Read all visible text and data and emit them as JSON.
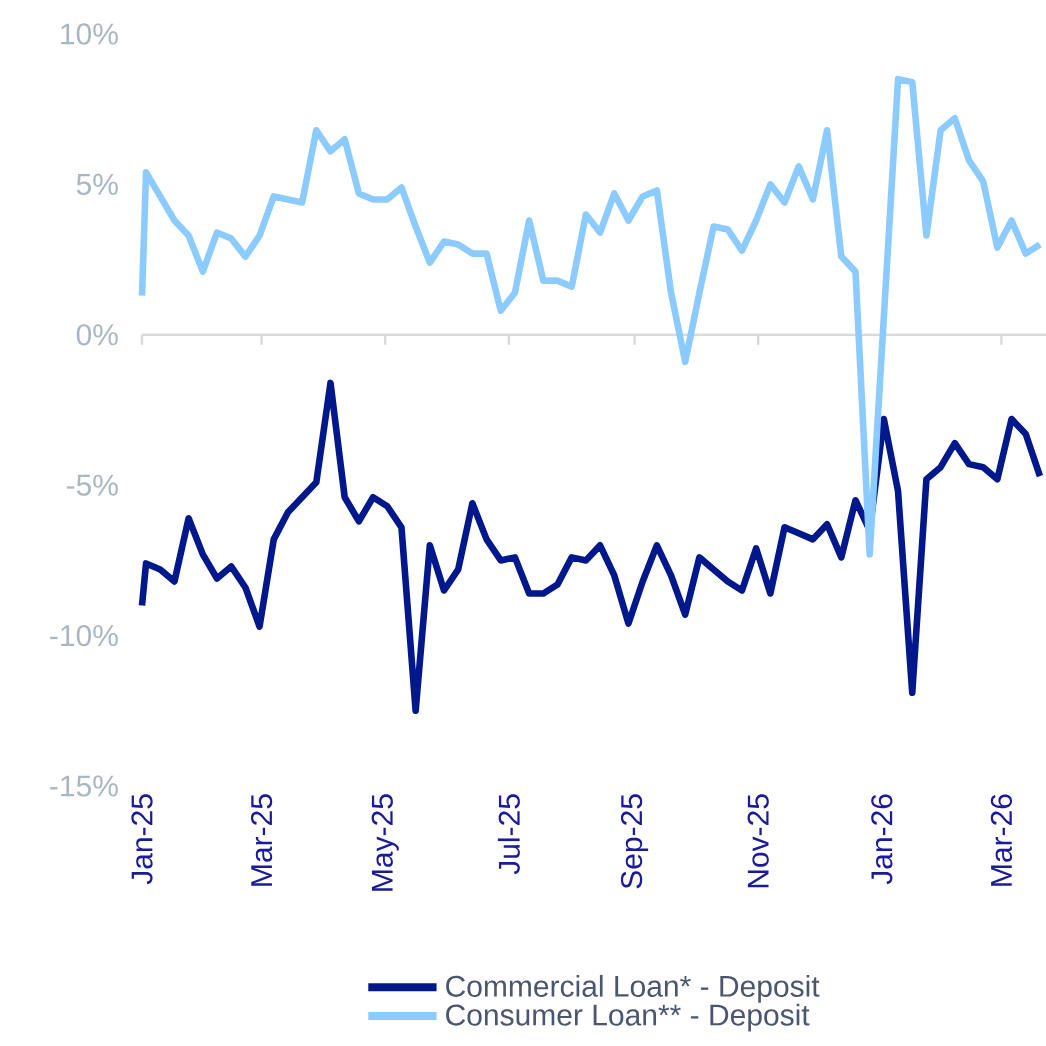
{
  "chart_data": {
    "type": "line",
    "x": [
      "2025-01-01",
      "2025-01-03",
      "2025-01-10",
      "2025-01-17",
      "2025-01-24",
      "2025-01-31",
      "2025-02-07",
      "2025-02-14",
      "2025-02-21",
      "2025-02-28",
      "2025-03-07",
      "2025-03-14",
      "2025-03-21",
      "2025-03-28",
      "2025-04-04",
      "2025-04-11",
      "2025-04-18",
      "2025-04-25",
      "2025-05-02",
      "2025-05-09",
      "2025-05-16",
      "2025-05-23",
      "2025-05-30",
      "2025-06-06",
      "2025-06-13",
      "2025-06-20",
      "2025-06-27",
      "2025-07-04",
      "2025-07-11",
      "2025-07-18",
      "2025-07-25",
      "2025-08-01",
      "2025-08-08",
      "2025-08-15",
      "2025-08-22",
      "2025-08-29",
      "2025-09-05",
      "2025-09-12",
      "2025-09-19",
      "2025-09-26",
      "2025-10-03",
      "2025-10-10",
      "2025-10-17",
      "2025-10-24",
      "2025-10-31",
      "2025-11-07",
      "2025-11-14",
      "2025-11-21",
      "2025-11-28",
      "2025-12-05",
      "2025-12-12",
      "2025-12-19",
      "2025-12-26",
      "2026-01-02",
      "2026-01-09",
      "2026-01-16",
      "2026-01-23",
      "2026-01-30",
      "2026-02-06",
      "2026-02-13",
      "2026-02-20",
      "2026-02-27",
      "2026-03-06",
      "2026-03-13",
      "2026-03-20"
    ],
    "series": [
      {
        "name": "Commercial Loan* - Deposit",
        "color": "#00188c",
        "values": [
          -9.0,
          -7.6,
          -7.8,
          -8.2,
          -6.1,
          -7.3,
          -8.1,
          -7.7,
          -8.4,
          -9.7,
          -6.8,
          -5.9,
          -5.4,
          -4.9,
          -1.6,
          -5.4,
          -6.2,
          -5.4,
          -5.7,
          -6.4,
          -12.5,
          -7.0,
          -8.5,
          -7.8,
          -5.6,
          -6.8,
          -7.5,
          -7.4,
          -8.6,
          -8.6,
          -8.3,
          -7.4,
          -7.5,
          -7.0,
          -8.0,
          -9.6,
          -8.2,
          -7.0,
          -8.0,
          -9.3,
          -7.4,
          -7.8,
          -8.2,
          -8.5,
          -7.1,
          -8.6,
          -6.4,
          -6.6,
          -6.8,
          -6.3,
          -7.4,
          -5.5,
          -6.5,
          -2.8,
          -5.2,
          -11.9,
          -4.8,
          -4.4,
          -3.6,
          -4.3,
          -4.4,
          -4.8,
          -2.8,
          -3.3,
          -4.7
        ]
      },
      {
        "name": "Consumer Loan** - Deposit",
        "color": "#8ccbff",
        "values": [
          1.3,
          5.4,
          4.6,
          3.8,
          3.3,
          2.1,
          3.4,
          3.2,
          2.6,
          3.3,
          4.6,
          4.5,
          4.4,
          6.8,
          6.1,
          6.5,
          4.7,
          4.5,
          4.5,
          4.9,
          3.6,
          2.4,
          3.1,
          3.0,
          2.7,
          2.7,
          0.8,
          1.4,
          3.8,
          1.8,
          1.8,
          1.6,
          4.0,
          3.4,
          4.7,
          3.8,
          4.6,
          4.8,
          1.4,
          -0.9,
          1.4,
          3.6,
          3.5,
          2.8,
          3.8,
          5.0,
          4.4,
          5.6,
          4.5,
          6.8,
          2.6,
          2.1,
          -7.3,
          0.6,
          8.5,
          8.4,
          3.3,
          6.8,
          7.2,
          5.8,
          5.1,
          2.9,
          3.8,
          2.7,
          3.0
        ]
      }
    ],
    "xlim": [
      "2025-01-01",
      "2026-03-23"
    ],
    "xticks": [
      {
        "value": "2025-01-01",
        "label": "Jan-25"
      },
      {
        "value": "2025-03-01",
        "label": "Mar-25"
      },
      {
        "value": "2025-05-01",
        "label": "May-25"
      },
      {
        "value": "2025-07-01",
        "label": "Jul-25"
      },
      {
        "value": "2025-09-01",
        "label": "Sep-25"
      },
      {
        "value": "2025-11-01",
        "label": "Nov-25"
      },
      {
        "value": "2026-01-01",
        "label": "Jan-26"
      },
      {
        "value": "2026-03-01",
        "label": "Mar-26"
      }
    ],
    "ylim": [
      -15,
      10
    ],
    "yticks": [
      {
        "value": -15,
        "label": "-15%"
      },
      {
        "value": -10,
        "label": "-10%"
      },
      {
        "value": -5,
        "label": "-5%"
      },
      {
        "value": 0,
        "label": "0%"
      },
      {
        "value": 5,
        "label": "5%"
      },
      {
        "value": 10,
        "label": "10%"
      }
    ],
    "ref_lines": [
      {
        "axis": "y",
        "value": 0,
        "color": "#d9d9d9"
      }
    ],
    "grid": false,
    "legend": "bottom",
    "marker": "none",
    "line_style": "solid"
  }
}
